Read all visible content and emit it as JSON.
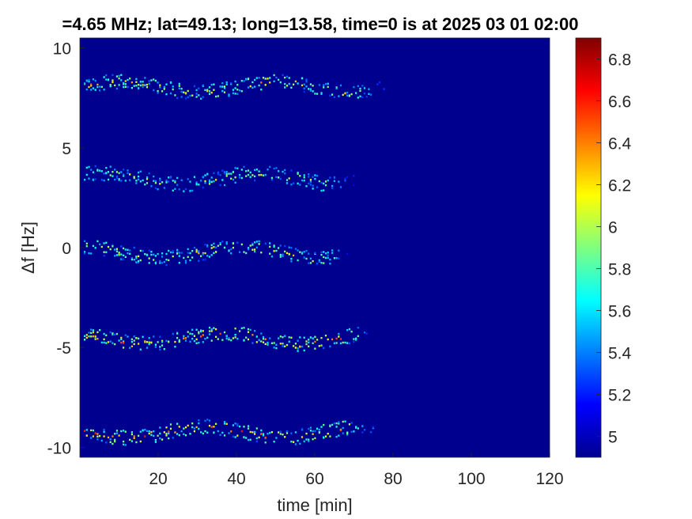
{
  "chart_data": {
    "type": "heatmap",
    "title": "=4.65 MHz;  lat=49.13; long=13.58, time=0 is at 2025 03 01 02:00",
    "xlabel": "time [min]",
    "ylabel": "Δf [Hz]",
    "xlim": [
      0,
      120
    ],
    "ylim": [
      -10.5,
      10.5
    ],
    "x_ticks": [
      20,
      40,
      60,
      80,
      100,
      120
    ],
    "y_ticks": [
      10,
      5,
      0,
      -5,
      -10
    ],
    "colorbar": {
      "colormap": "jet",
      "range": [
        4.9,
        6.9
      ],
      "ticks": [
        5,
        5.2,
        5.4,
        5.6,
        5.8,
        6,
        6.2,
        6.4,
        6.6,
        6.8
      ]
    },
    "background_value": 4.9,
    "series": [
      {
        "center_hz": 8.1,
        "signal_end_min": 78,
        "peak_value": 6.3
      },
      {
        "center_hz": 3.5,
        "signal_end_min": 70,
        "peak_value": 6.1
      },
      {
        "center_hz": -0.2,
        "signal_end_min": 70,
        "peak_value": 6.2
      },
      {
        "center_hz": -4.5,
        "signal_end_min": 75,
        "peak_value": 6.5
      },
      {
        "center_hz": -9.2,
        "signal_end_min": 76,
        "peak_value": 6.5
      }
    ]
  }
}
